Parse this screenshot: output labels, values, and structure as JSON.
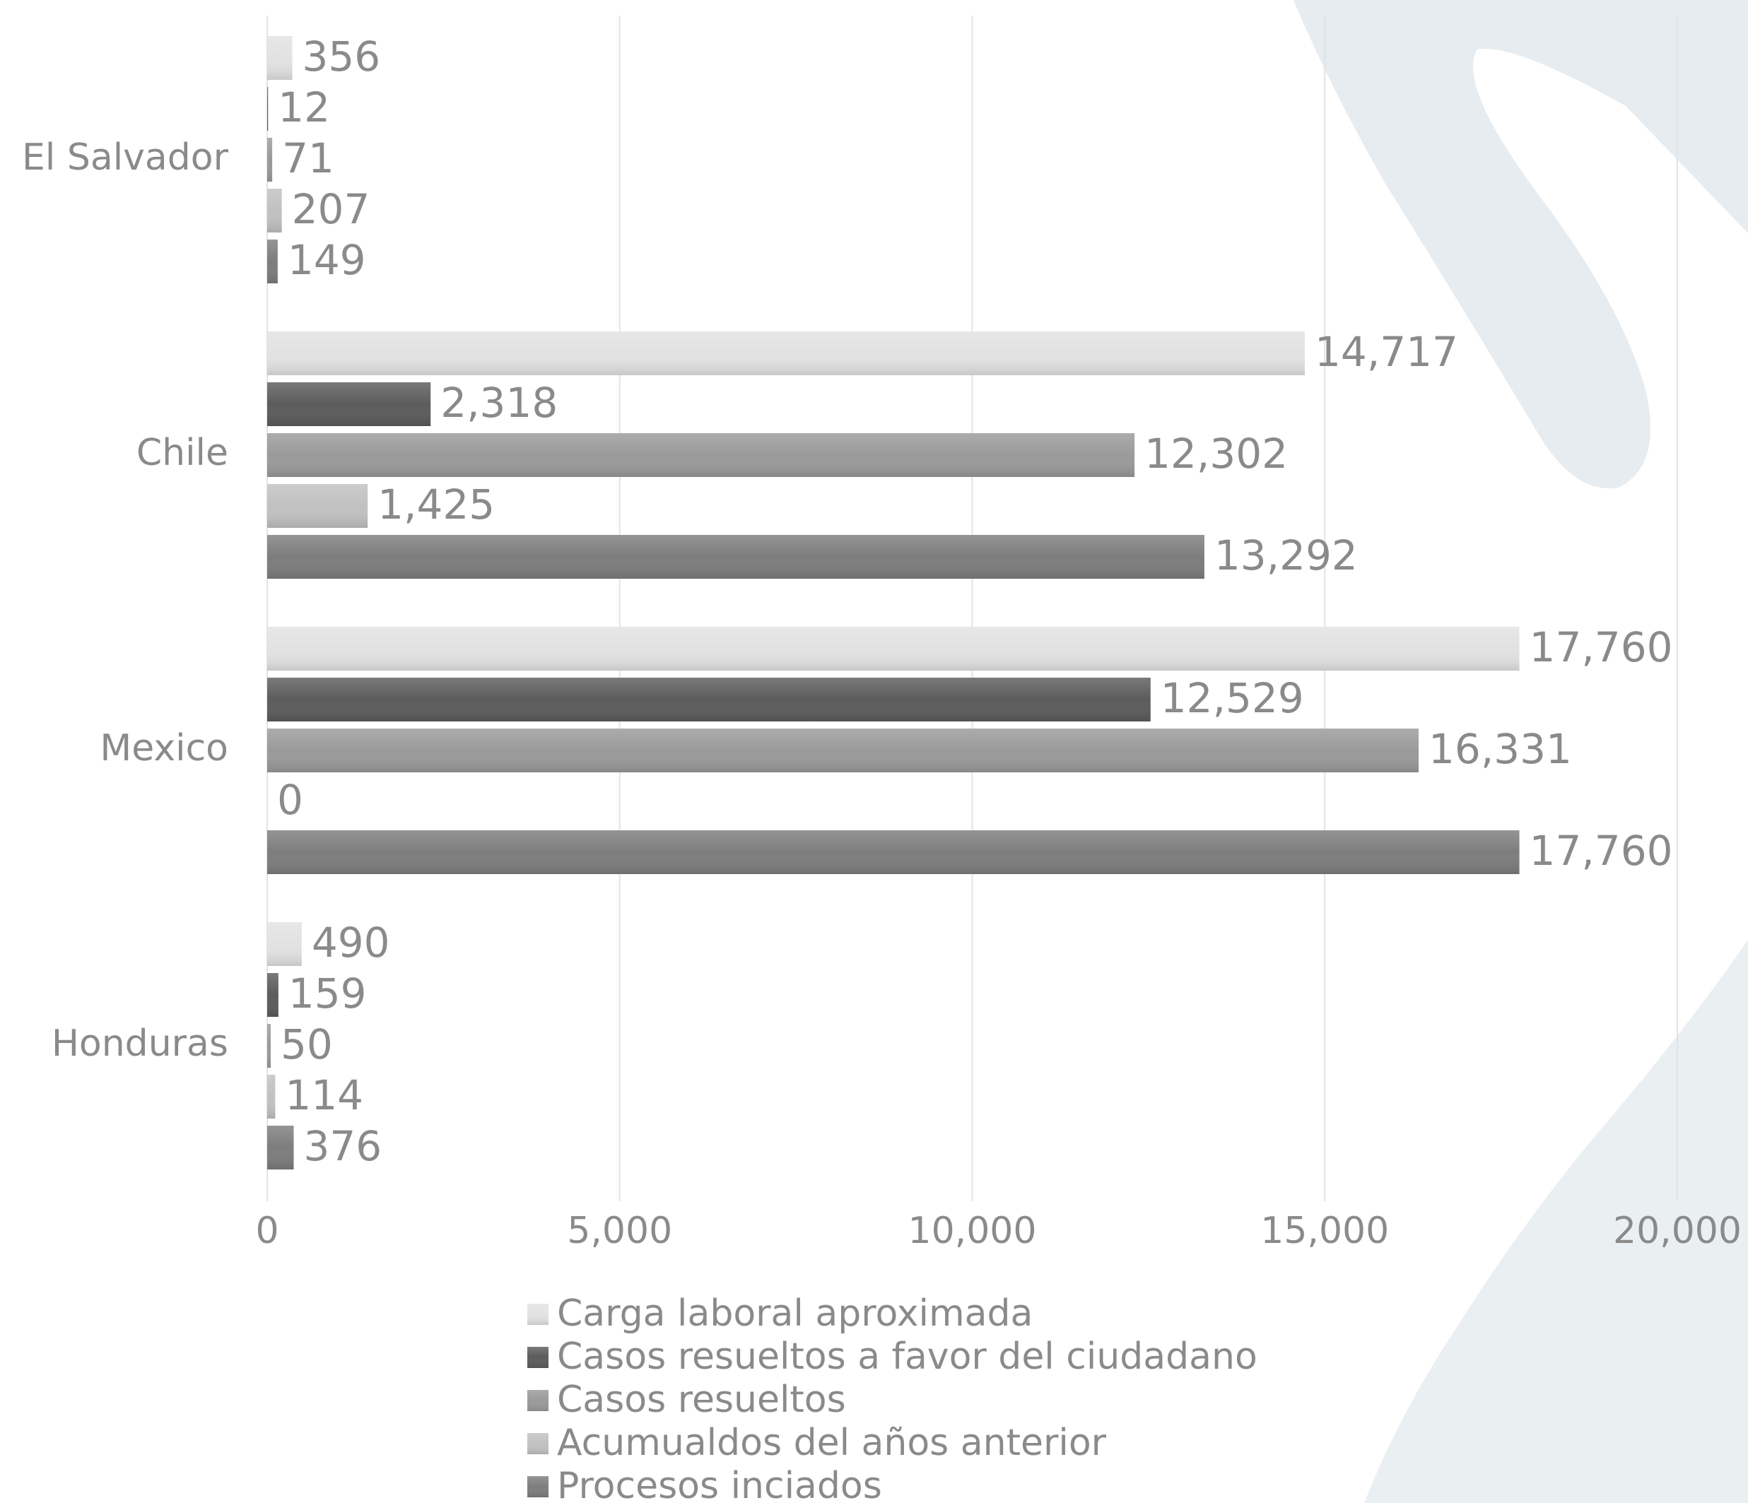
{
  "chart_data": {
    "type": "bar",
    "orientation": "horizontal",
    "categories": [
      "El Salvador",
      "Chile",
      "Mexico",
      "Honduras"
    ],
    "series": [
      {
        "name": "Carga laboral aproximada",
        "color": "#e2e2e2",
        "values": [
          356,
          14717,
          17760,
          490
        ],
        "labels": [
          "356",
          "14,717",
          "17,760",
          "490"
        ]
      },
      {
        "name": "Casos resueltos a favor del ciudadano",
        "color": "#5c5c5c",
        "values": [
          12,
          2318,
          12529,
          159
        ],
        "labels": [
          "12",
          "2,318",
          "12,529",
          "159"
        ]
      },
      {
        "name": "Casos resueltos",
        "color": "#9a9a9a",
        "values": [
          71,
          12302,
          16331,
          50
        ],
        "labels": [
          "71",
          "12,302",
          "16,331",
          "50"
        ]
      },
      {
        "name": "Acumualdos del años anterior",
        "color": "#c1c1c1",
        "values": [
          207,
          1425,
          0,
          114
        ],
        "labels": [
          "207",
          "1,425",
          "0",
          "114"
        ]
      },
      {
        "name": "Procesos inciados",
        "color": "#7d7d7d",
        "values": [
          149,
          13292,
          17760,
          376
        ],
        "labels": [
          "149",
          "13,292",
          "17,760",
          "376"
        ]
      }
    ],
    "xlim": [
      0,
      20000
    ],
    "xticks": [
      0,
      5000,
      10000,
      15000,
      20000
    ],
    "xtick_labels": [
      "0",
      "5,000",
      "10,000",
      "15,000",
      "20,000"
    ],
    "grid": true,
    "legend_position": "bottom",
    "data_labels": true
  },
  "background": {
    "shape_color": "#dde4e9",
    "name": "decorative-leaf-shapes"
  }
}
